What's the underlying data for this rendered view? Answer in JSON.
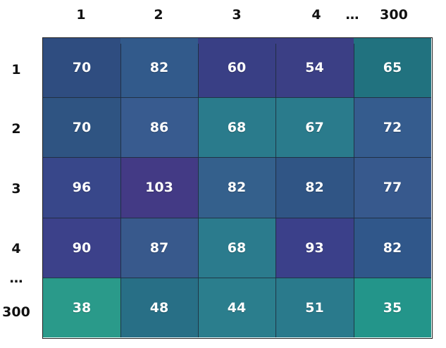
{
  "column_labels": [
    "1",
    "2",
    "3",
    "4",
    "…",
    "300"
  ],
  "row_labels": [
    "1",
    "2",
    "3",
    "4",
    "…",
    "300"
  ],
  "values": [
    [
      "70",
      "82",
      "60",
      "54",
      "65"
    ],
    [
      "70",
      "86",
      "68",
      "67",
      "72"
    ],
    [
      "96",
      "103",
      "82",
      "82",
      "77"
    ],
    [
      "90",
      "87",
      "68",
      "93",
      "82"
    ],
    [
      "38",
      "48",
      "44",
      "51",
      "35"
    ]
  ],
  "colors": [
    [
      "#2f4d80",
      "#325a8b",
      "#393f85",
      "#3b3f85",
      "#21727f"
    ],
    [
      "#2f5482",
      "#385b8f",
      "#2a7b8c",
      "#2a7b8c",
      "#355c8e"
    ],
    [
      "#38478a",
      "#433a85",
      "#34608c",
      "#305585",
      "#37598d"
    ],
    [
      "#3c418a",
      "#38598c",
      "#2b7b8d",
      "#3b408a",
      "#30578a"
    ],
    [
      "#2a9a8a",
      "#286f86",
      "#2b7e8d",
      "#2a7a8c",
      "#23958a"
    ]
  ]
}
